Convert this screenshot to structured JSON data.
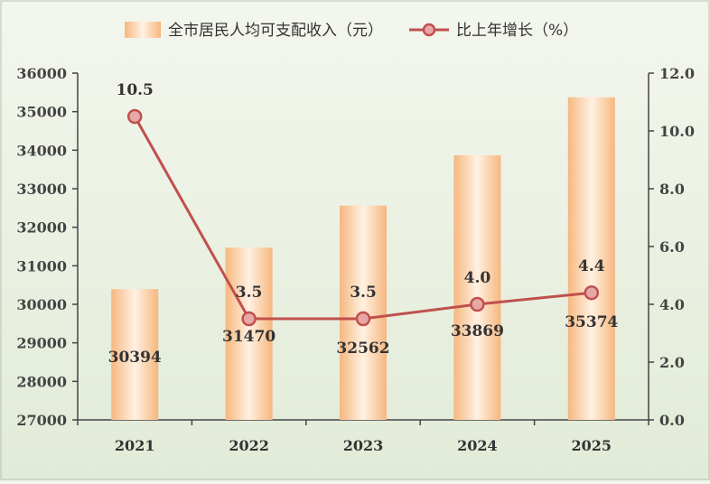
{
  "chart_data": {
    "type": "bar+line",
    "categories": [
      "2021",
      "2022",
      "2023",
      "2024",
      "2025"
    ],
    "series": [
      {
        "name": "全市居民人均可支配收入（元）",
        "type": "bar",
        "axis": "left",
        "values": [
          30394,
          31470,
          32562,
          33869,
          35374
        ],
        "labels": [
          "30394",
          "31470",
          "32562",
          "33869",
          "35374"
        ],
        "color": "#f5b882"
      },
      {
        "name": "比上年增长（%）",
        "type": "line",
        "axis": "right",
        "values": [
          10.5,
          3.5,
          3.5,
          4.0,
          4.4
        ],
        "labels": [
          "10.5",
          "3.5",
          "3.5",
          "4.0",
          "4.4"
        ],
        "color": "#c0504d"
      }
    ],
    "y_left": {
      "range": [
        27000,
        36000
      ],
      "ticks": [
        "27000",
        "28000",
        "29000",
        "30000",
        "31000",
        "32000",
        "33000",
        "34000",
        "35000",
        "36000"
      ]
    },
    "y_right": {
      "range": [
        0,
        12
      ],
      "ticks": [
        "0.0",
        "2.0",
        "4.0",
        "6.0",
        "8.0",
        "10.0",
        "12.0"
      ]
    },
    "legend_position": "top",
    "grid": false
  }
}
